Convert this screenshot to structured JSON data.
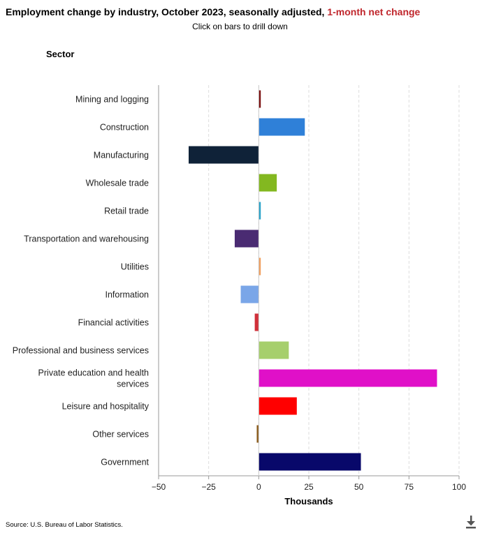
{
  "header": {
    "title_main": "Employment change by industry, October 2023, seasonally adjusted,",
    "title_accent": "1-month net change",
    "subtitle": "Click on bars to drill down",
    "axis_group_label": "Sector"
  },
  "chart_data": {
    "type": "bar",
    "orientation": "horizontal",
    "title": "Employment change by industry, October 2023, seasonally adjusted, 1-month net change",
    "xlabel": "Thousands",
    "ylabel": "Sector",
    "xlim": [
      -50,
      100
    ],
    "xticks": [
      -50,
      -25,
      0,
      25,
      50,
      75,
      100
    ],
    "xtick_labels": [
      "−50",
      "−25",
      "0",
      "25",
      "50",
      "75",
      "100"
    ],
    "grid": "vertical dashed",
    "categories": [
      "Mining and logging",
      "Construction",
      "Manufacturing",
      "Wholesale trade",
      "Retail trade",
      "Transportation and warehousing",
      "Utilities",
      "Information",
      "Financial activities",
      "Professional and business services",
      "Private education and health services",
      "Leisure and hospitality",
      "Other services",
      "Government"
    ],
    "values": [
      1,
      23,
      -35,
      9,
      1,
      -12,
      1,
      -9,
      -2,
      15,
      89,
      19,
      -1,
      51
    ],
    "colors": [
      "#7b1010",
      "#2f80d8",
      "#0f2238",
      "#83b820",
      "#2aa3c9",
      "#4a2b72",
      "#f0a060",
      "#7aa6e8",
      "#d0303a",
      "#a6cf6c",
      "#e010c8",
      "#ff0000",
      "#8a5a1a",
      "#08086a"
    ]
  },
  "footer": {
    "source": "Source: U.S. Bureau of Labor Statistics."
  },
  "icons": {
    "download": "download-icon"
  }
}
